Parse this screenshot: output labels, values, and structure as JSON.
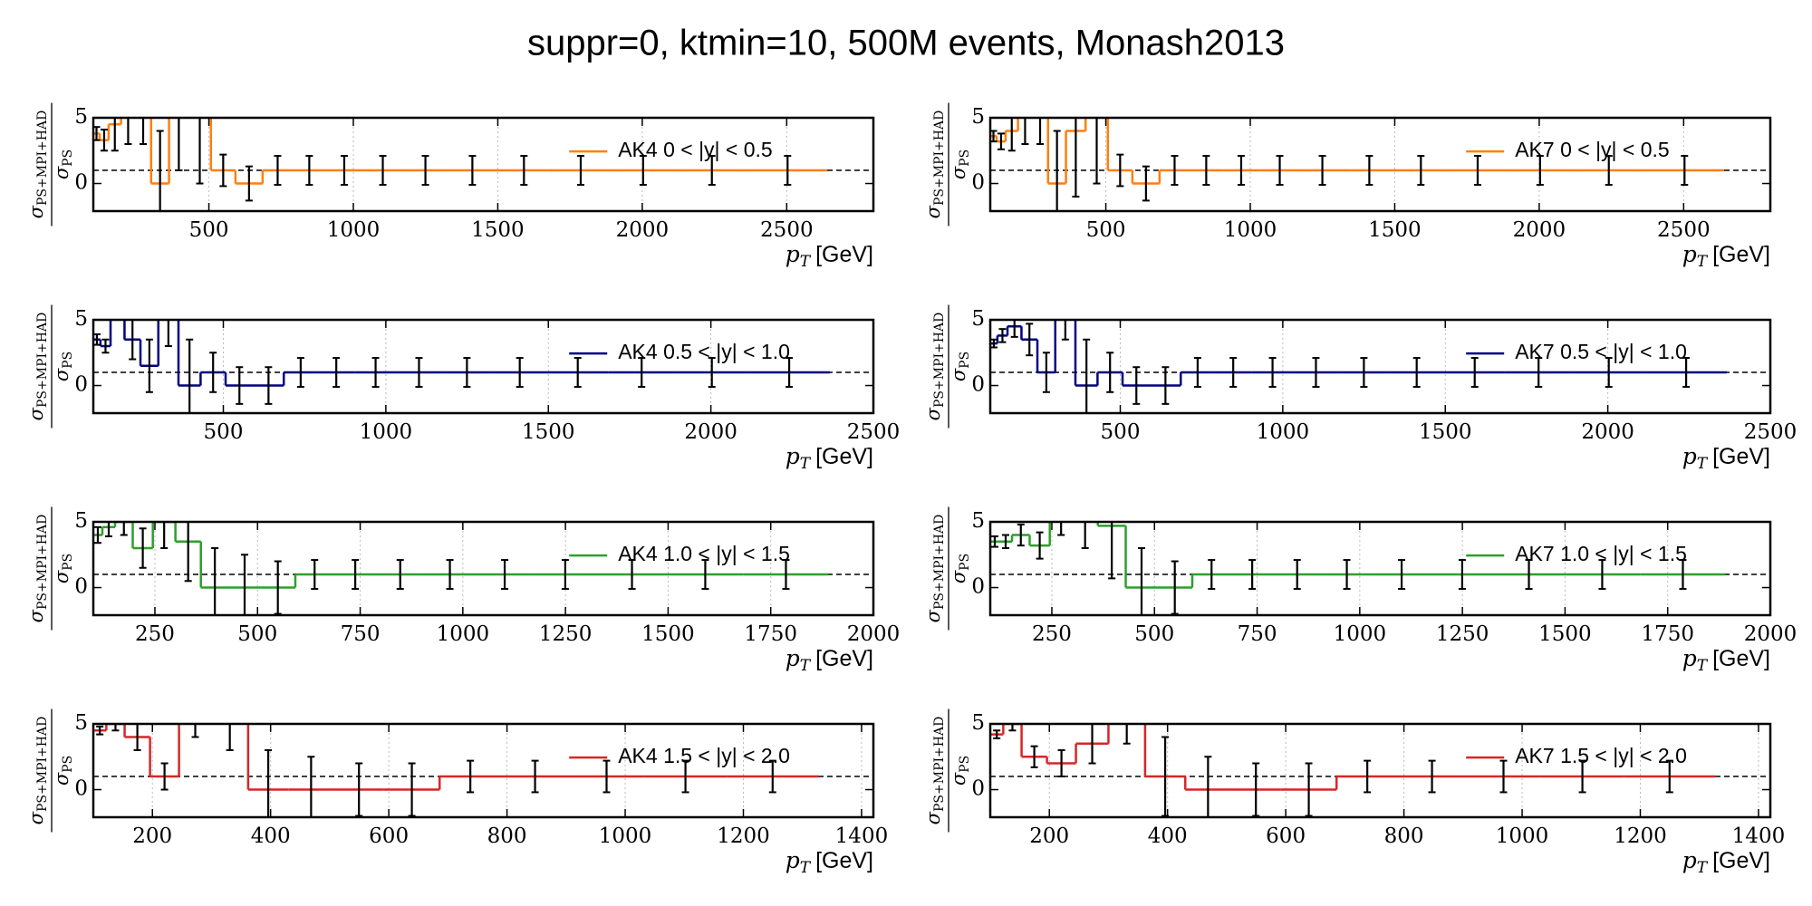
{
  "title": "suppr=0, ktmin=10, 500M events, Monash2013",
  "chart_data": [
    {
      "type": "step",
      "xlabel": {
        "symbol": "p",
        "sub": "T",
        "unit": "[GeV]"
      },
      "ylabel": {
        "symbol": "σ",
        "numerator": "PS+MPI+HAD",
        "denominator": "PS"
      },
      "xlim": [
        100,
        2800
      ],
      "xticks": [
        500,
        1000,
        1500,
        2000,
        2500
      ],
      "ylim": [
        -2.1,
        5
      ],
      "yticks": [
        0,
        5
      ],
      "grid": "x",
      "hline": 1,
      "series": [
        {
          "name": "AK4 0 < |y| < 0.5",
          "color": "#ff7f0e",
          "bins": [
            100,
            122,
            153,
            196,
            245,
            300,
            362,
            430,
            507,
            592,
            686,
            790,
            905,
            1032,
            1172,
            1327,
            1497,
            1684,
            1890,
            2116,
            2366,
            2640
          ],
          "values": [
            3.8,
            3.3,
            4.5,
            6,
            6,
            0,
            6,
            6,
            1,
            0,
            1,
            1,
            1,
            1,
            1,
            1,
            1,
            1,
            1,
            1,
            1
          ],
          "errors": [
            0.5,
            0.8,
            2,
            3,
            3,
            4,
            5,
            6,
            1.2,
            1.3,
            1.1,
            1.1,
            1.1,
            1.1,
            1.1,
            1.1,
            1.1,
            1.1,
            1.1,
            1.1,
            1.1
          ]
        }
      ]
    },
    {
      "type": "step",
      "xlabel": {
        "symbol": "p",
        "sub": "T",
        "unit": "[GeV]"
      },
      "ylabel": {
        "symbol": "σ",
        "numerator": "PS+MPI+HAD",
        "denominator": "PS"
      },
      "xlim": [
        100,
        2800
      ],
      "xticks": [
        500,
        1000,
        1500,
        2000,
        2500
      ],
      "ylim": [
        -2.1,
        5
      ],
      "yticks": [
        0,
        5
      ],
      "grid": "x",
      "hline": 1,
      "series": [
        {
          "name": "AK7 0 < |y| < 0.5",
          "color": "#ff7f0e",
          "bins": [
            100,
            122,
            153,
            196,
            245,
            300,
            362,
            430,
            507,
            592,
            686,
            790,
            905,
            1032,
            1172,
            1327,
            1497,
            1684,
            1890,
            2116,
            2366,
            2640
          ],
          "values": [
            3.6,
            3.2,
            4,
            6,
            6,
            0,
            4,
            6,
            1,
            0,
            1,
            1,
            1,
            1,
            1,
            1,
            1,
            1,
            1,
            1,
            1
          ],
          "errors": [
            0.4,
            0.6,
            1.5,
            3,
            3,
            4,
            5,
            6,
            1.2,
            1.3,
            1.1,
            1.1,
            1.1,
            1.1,
            1.1,
            1.1,
            1.1,
            1.1,
            1.1,
            1.1,
            1.1
          ]
        }
      ]
    },
    {
      "type": "step",
      "xlabel": {
        "symbol": "p",
        "sub": "T",
        "unit": "[GeV]"
      },
      "ylabel": {
        "symbol": "σ",
        "numerator": "PS+MPI+HAD",
        "denominator": "PS"
      },
      "xlim": [
        100,
        2500
      ],
      "xticks": [
        500,
        1000,
        1500,
        2000,
        2500
      ],
      "ylim": [
        -2.1,
        5
      ],
      "yticks": [
        0,
        5
      ],
      "grid": "x",
      "hline": 1,
      "series": [
        {
          "name": "AK4 0.5 < |y| < 1.0",
          "color": "#000080",
          "bins": [
            100,
            122,
            153,
            196,
            245,
            300,
            362,
            430,
            507,
            592,
            686,
            790,
            905,
            1032,
            1172,
            1327,
            1497,
            1684,
            1890,
            2116,
            2366
          ],
          "values": [
            3.5,
            3,
            6,
            3.5,
            1.5,
            6,
            0,
            1,
            0,
            0,
            1,
            1,
            1,
            1,
            1,
            1,
            1,
            1,
            1,
            1
          ],
          "errors": [
            0.4,
            0.5,
            1,
            1.5,
            2,
            3,
            3.5,
            1.5,
            1.4,
            1.4,
            1.1,
            1.1,
            1.1,
            1.1,
            1.1,
            1.1,
            1.1,
            1.1,
            1.1,
            1.1
          ]
        }
      ]
    },
    {
      "type": "step",
      "xlabel": {
        "symbol": "p",
        "sub": "T",
        "unit": "[GeV]"
      },
      "ylabel": {
        "symbol": "σ",
        "numerator": "PS+MPI+HAD",
        "denominator": "PS"
      },
      "xlim": [
        100,
        2500
      ],
      "xticks": [
        500,
        1000,
        1500,
        2000,
        2500
      ],
      "ylim": [
        -2.1,
        5
      ],
      "yticks": [
        0,
        5
      ],
      "grid": "x",
      "hline": 1,
      "series": [
        {
          "name": "AK7 0.5 < |y| < 1.0",
          "color": "#000080",
          "bins": [
            100,
            122,
            153,
            196,
            245,
            300,
            362,
            430,
            507,
            592,
            686,
            790,
            905,
            1032,
            1172,
            1327,
            1497,
            1684,
            1890,
            2116,
            2366
          ],
          "values": [
            3.2,
            3.8,
            4.5,
            3.5,
            1,
            6,
            0,
            1,
            0,
            0,
            1,
            1,
            1,
            1,
            1,
            1,
            1,
            1,
            1,
            1
          ],
          "errors": [
            0.3,
            0.5,
            0.8,
            1.2,
            1.5,
            2.5,
            3.5,
            1.5,
            1.4,
            1.4,
            1.1,
            1.1,
            1.1,
            1.1,
            1.1,
            1.1,
            1.1,
            1.1,
            1.1,
            1.1
          ]
        }
      ]
    },
    {
      "type": "step",
      "xlabel": {
        "symbol": "p",
        "sub": "T",
        "unit": "[GeV]"
      },
      "ylabel": {
        "symbol": "σ",
        "numerator": "PS+MPI+HAD",
        "denominator": "PS"
      },
      "xlim": [
        100,
        2000
      ],
      "xticks": [
        250,
        500,
        750,
        1000,
        1250,
        1500,
        1750,
        2000
      ],
      "ylim": [
        -2.1,
        5
      ],
      "yticks": [
        0,
        5
      ],
      "grid": "x",
      "hline": 1,
      "series": [
        {
          "name": "AK4 1.0 < |y| < 1.5",
          "color": "#2ca02c",
          "bins": [
            100,
            122,
            153,
            196,
            245,
            300,
            362,
            430,
            507,
            592,
            686,
            790,
            905,
            1032,
            1172,
            1327,
            1497,
            1684,
            1890
          ],
          "values": [
            4,
            4.6,
            5,
            3,
            5,
            3.5,
            0,
            0,
            0,
            1,
            1,
            1,
            1,
            1,
            1,
            1,
            1,
            1
          ],
          "errors": [
            0.6,
            0.7,
            1,
            1.5,
            2,
            3,
            3,
            2.5,
            2,
            1.1,
            1.1,
            1.1,
            1.1,
            1.1,
            1.1,
            1.1,
            1.1,
            1.1
          ]
        }
      ]
    },
    {
      "type": "step",
      "xlabel": {
        "symbol": "p",
        "sub": "T",
        "unit": "[GeV]"
      },
      "ylabel": {
        "symbol": "σ",
        "numerator": "PS+MPI+HAD",
        "denominator": "PS"
      },
      "xlim": [
        100,
        2000
      ],
      "xticks": [
        250,
        500,
        750,
        1000,
        1250,
        1500,
        1750,
        2000
      ],
      "ylim": [
        -2.1,
        5
      ],
      "yticks": [
        0,
        5
      ],
      "grid": "x",
      "hline": 1,
      "series": [
        {
          "name": "AK7 1.0 < |y| < 1.5",
          "color": "#2ca02c",
          "bins": [
            100,
            122,
            153,
            196,
            245,
            300,
            362,
            430,
            507,
            592,
            686,
            790,
            905,
            1032,
            1172,
            1327,
            1497,
            1684,
            1890
          ],
          "values": [
            3.5,
            3.5,
            4,
            3.2,
            6,
            6,
            4.7,
            0,
            0,
            1,
            1,
            1,
            1,
            1,
            1,
            1,
            1,
            1
          ],
          "errors": [
            0.4,
            0.5,
            0.8,
            1,
            2,
            3,
            4,
            3,
            2,
            1.1,
            1.1,
            1.1,
            1.1,
            1.1,
            1.1,
            1.1,
            1.1,
            1.1
          ]
        }
      ]
    },
    {
      "type": "step",
      "xlabel": {
        "symbol": "p",
        "sub": "T",
        "unit": "[GeV]"
      },
      "ylabel": {
        "symbol": "σ",
        "numerator": "PS+MPI+HAD",
        "denominator": "PS"
      },
      "xlim": [
        100,
        1420
      ],
      "xticks": [
        200,
        400,
        600,
        800,
        1000,
        1200,
        1400
      ],
      "ylim": [
        -2.1,
        5
      ],
      "yticks": [
        0,
        5
      ],
      "grid": "x",
      "hline": 1,
      "series": [
        {
          "name": "AK4 1.5 < |y| < 2.0",
          "color": "#d62728",
          "bins": [
            100,
            122,
            153,
            196,
            245,
            300,
            362,
            430,
            507,
            592,
            686,
            790,
            905,
            1032,
            1172,
            1327
          ],
          "values": [
            4.5,
            5,
            4,
            1,
            6,
            6,
            0,
            0,
            0,
            0,
            1,
            1,
            1,
            1,
            1
          ],
          "errors": [
            0.3,
            0.5,
            1,
            1,
            2,
            3,
            3,
            2.5,
            2,
            2,
            1.2,
            1.2,
            1.2,
            1.2,
            1.2
          ]
        }
      ]
    },
    {
      "type": "step",
      "xlabel": {
        "symbol": "p",
        "sub": "T",
        "unit": "[GeV]"
      },
      "ylabel": {
        "symbol": "σ",
        "numerator": "PS+MPI+HAD",
        "denominator": "PS"
      },
      "xlim": [
        100,
        1420
      ],
      "xticks": [
        200,
        400,
        600,
        800,
        1000,
        1200,
        1400
      ],
      "ylim": [
        -2.1,
        5
      ],
      "yticks": [
        0,
        5
      ],
      "grid": "x",
      "hline": 1,
      "series": [
        {
          "name": "AK7 1.5 < |y| < 2.0",
          "color": "#d62728",
          "bins": [
            100,
            122,
            153,
            196,
            245,
            300,
            362,
            430,
            507,
            592,
            686,
            790,
            905,
            1032,
            1172,
            1327
          ],
          "values": [
            4.2,
            5,
            2.5,
            2,
            3.5,
            6,
            1,
            0,
            0,
            0,
            1,
            1,
            1,
            1,
            1
          ],
          "errors": [
            0.3,
            0.5,
            0.8,
            1,
            1.5,
            2.5,
            3,
            2.5,
            2,
            2,
            1.2,
            1.2,
            1.2,
            1.2,
            1.2
          ]
        }
      ]
    }
  ]
}
